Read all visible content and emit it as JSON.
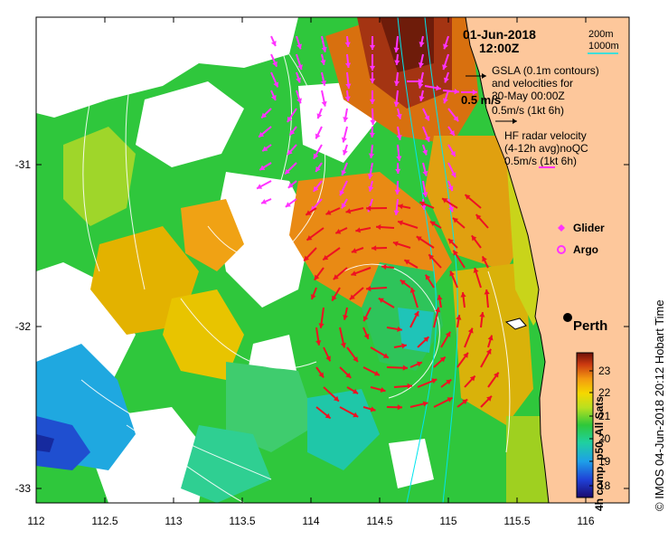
{
  "map": {
    "date": "01-Jun-2018",
    "time": "12:00Z",
    "scale_200m": "200m",
    "scale_1000m": "1000m",
    "gsla_line1": "GSLA (0.1m contours)",
    "gsla_line2": "and velocities for",
    "gsla_line3": "30-May 00:00Z",
    "gsla_vel": "0.5m/s (1kt 6h)",
    "vel_label": "0.5 m/s",
    "hf_line1": "HF radar velocity",
    "hf_line2": "(4-12h avg)noQC",
    "hf_line3": "0.5m/s (1kt 6h)",
    "legend_glider": "Glider",
    "legend_argo": "Argo",
    "city": "Perth",
    "credit": "IMOS 04-Jun-2018 20:12 Hobart Time",
    "copyright": "©",
    "colorbar_title": "4h comp, p50, All Sats",
    "colorbar_ticks": [
      "23",
      "22",
      "21",
      "20",
      "19",
      "18"
    ],
    "lon_ticks": [
      "112",
      "112.5",
      "113",
      "113.5",
      "114",
      "114.5",
      "115",
      "115.5",
      "116"
    ],
    "lat_ticks": [
      "-31",
      "-32",
      "-33"
    ],
    "colors": {
      "land": "#fdc79b",
      "gsla_arrow": "#ff33ff",
      "hf_arrow": "#ee1122",
      "contour": "#ffffff",
      "isobath": "#00e5ee"
    }
  }
}
